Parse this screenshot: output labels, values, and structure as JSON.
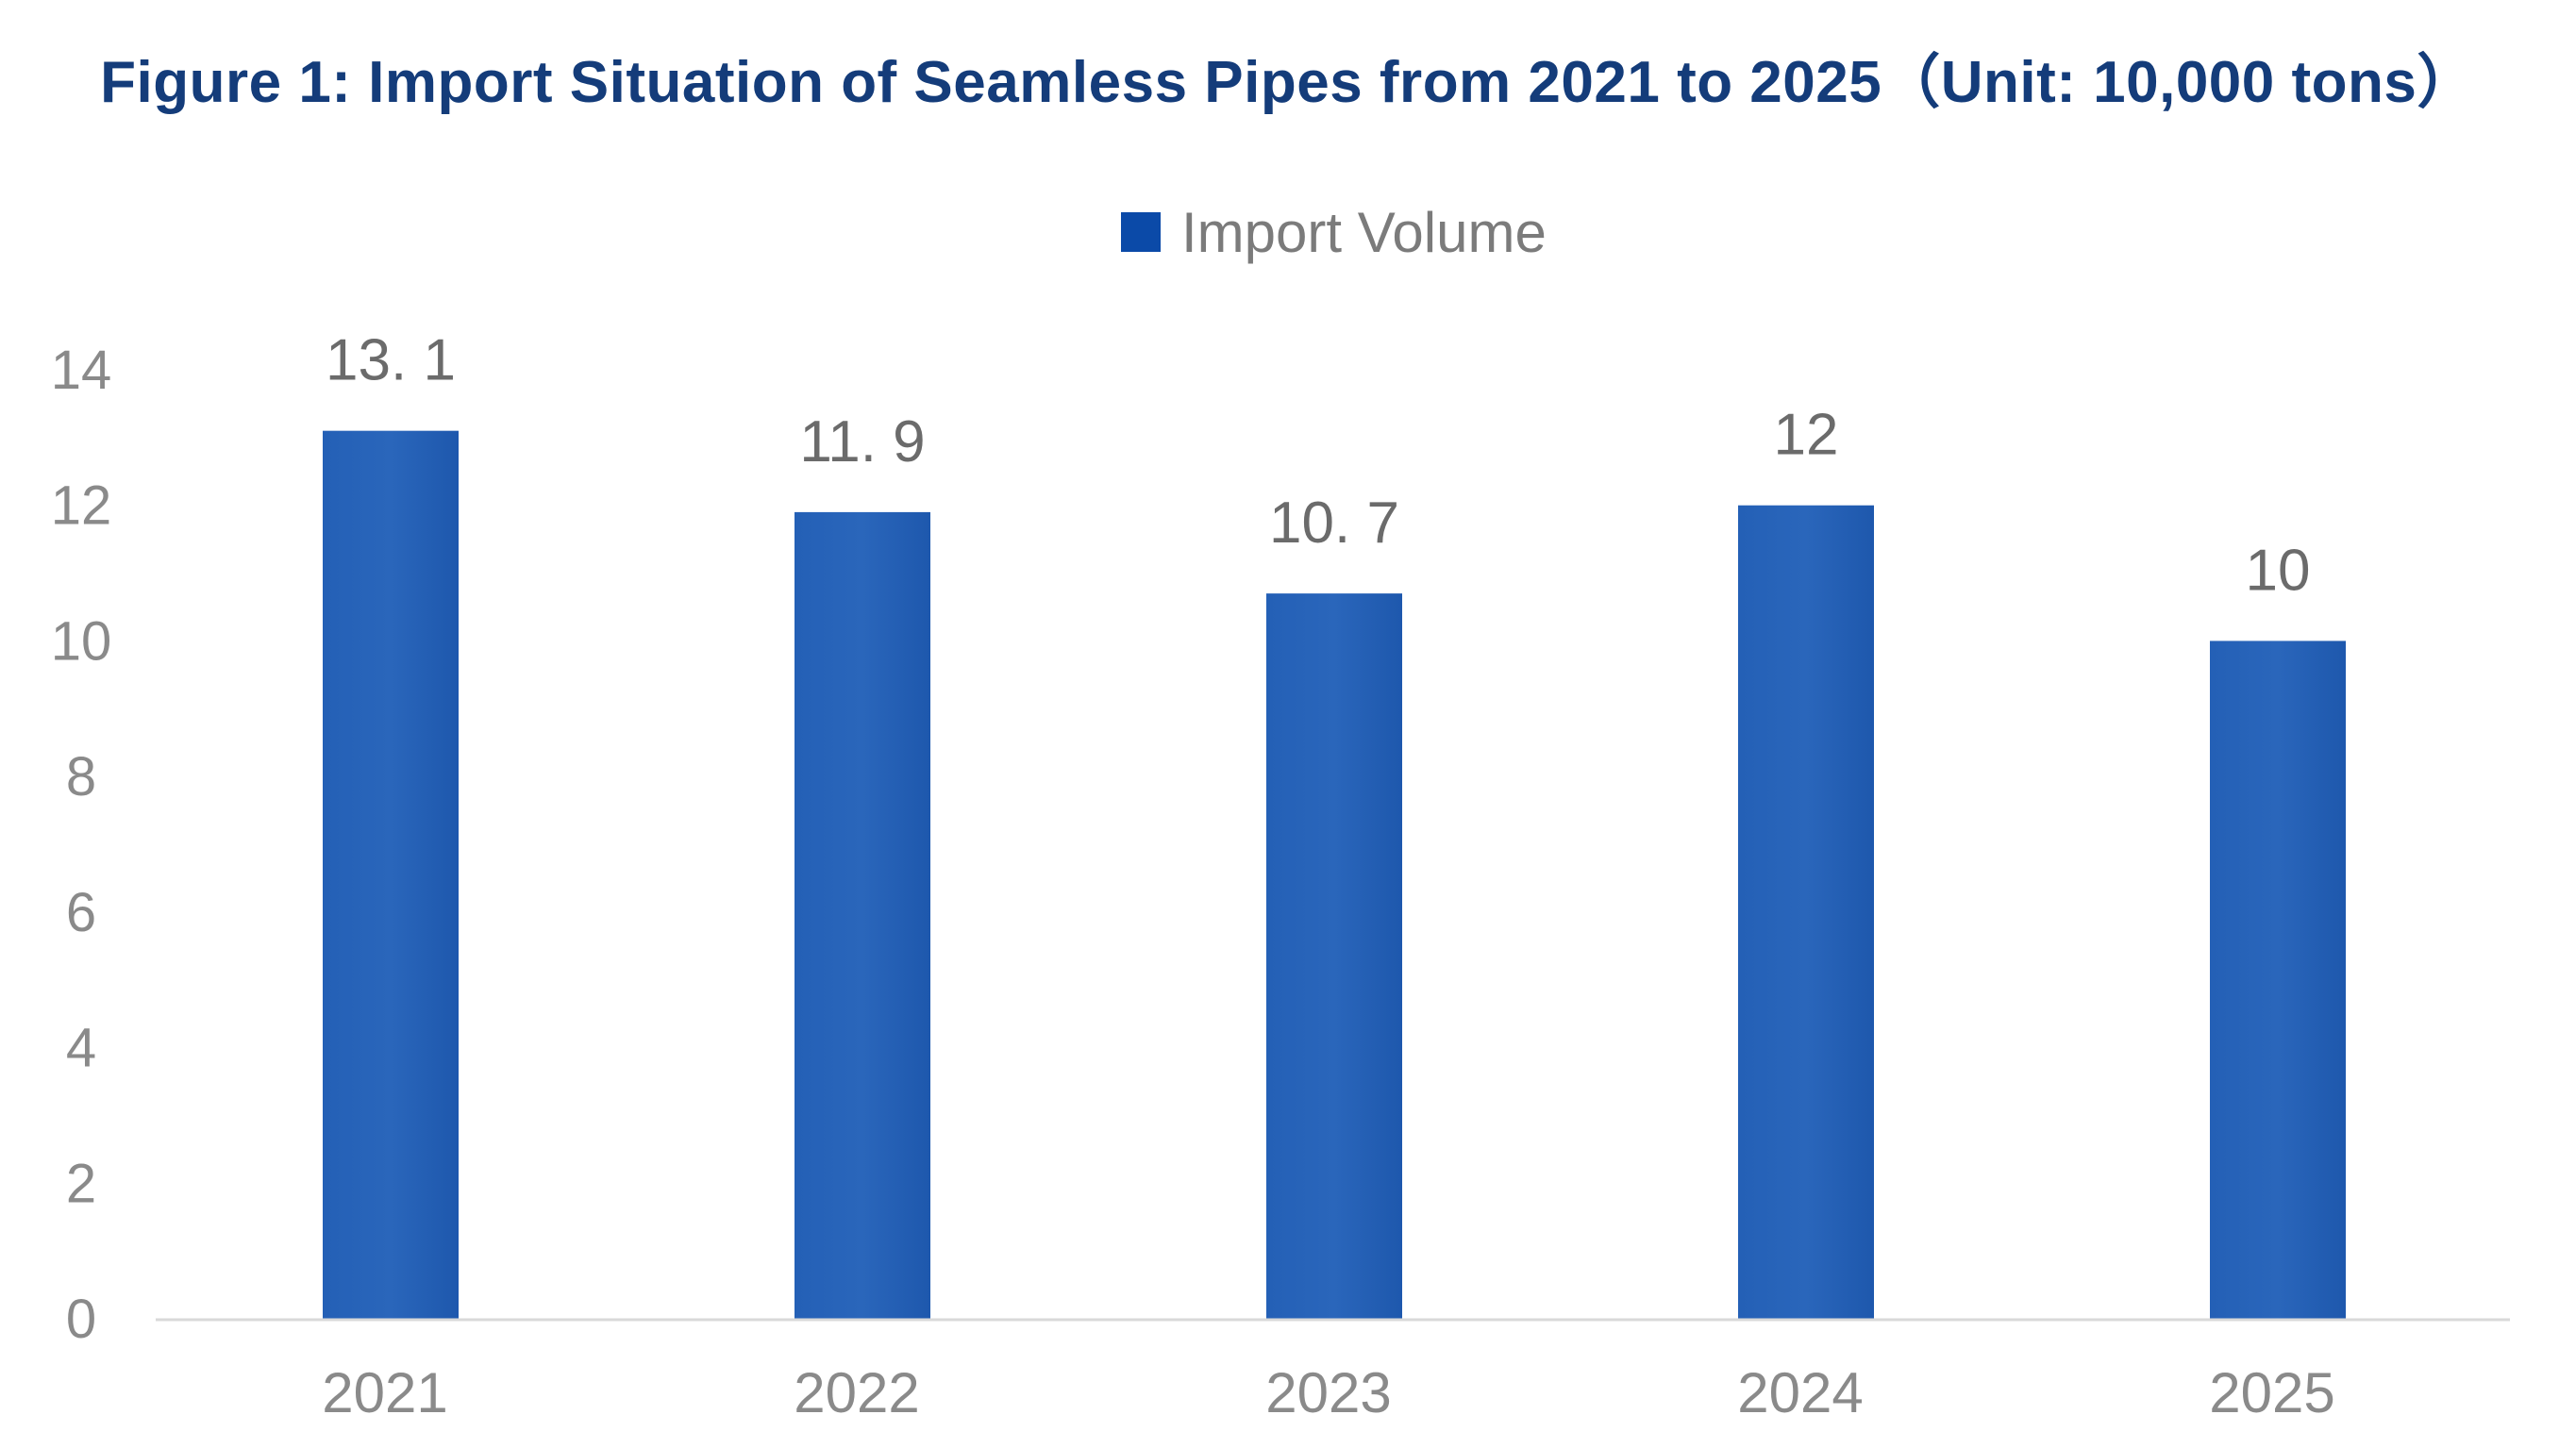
{
  "title": "Figure 1: Import Situation of Seamless Pipes from 2021 to 2025（Unit: 10,000 tons）",
  "colors": {
    "bar": "#1f5bb0",
    "title": "#143c7a",
    "axis_text": "#8a8a8a",
    "legend_swatch": "#0b4aa8"
  },
  "chart_data": {
    "type": "bar",
    "title": "Figure 1: Import Situation of Seamless Pipes from 2021 to 2025（Unit: 10,000 tons）",
    "categories": [
      "2021",
      "2022",
      "2023",
      "2024",
      "2025"
    ],
    "series": [
      {
        "name": "Import Volume",
        "values": [
          13.1,
          11.9,
          10.7,
          12,
          10
        ],
        "data_labels": [
          "13. 1",
          "11. 9",
          "10. 7",
          "12",
          "10"
        ]
      }
    ],
    "xlabel": "",
    "ylabel": "",
    "ylim": [
      0,
      14
    ],
    "yticks": [
      "0",
      "2",
      "4",
      "6",
      "8",
      "10",
      "12",
      "14"
    ],
    "grid": false,
    "legend_position": "top-center"
  }
}
